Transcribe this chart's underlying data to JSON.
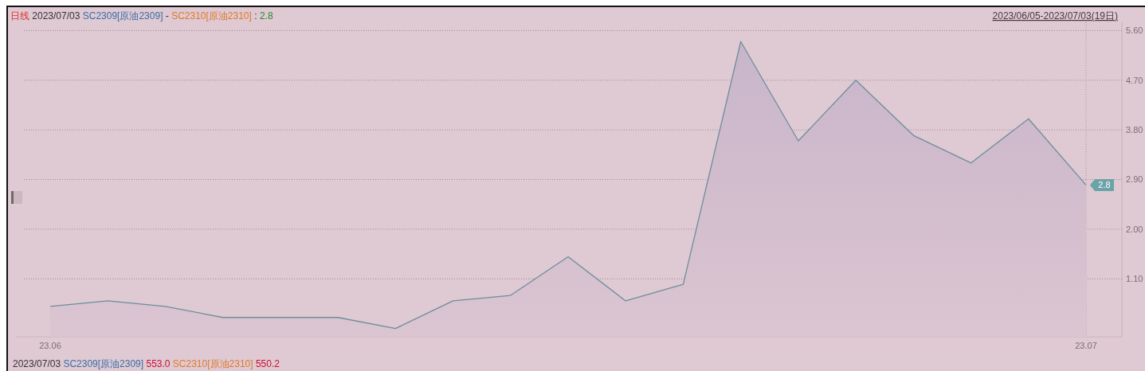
{
  "chart_data": {
    "type": "area",
    "title": "日线 2023/07/03 SC2309[原油2309] - SC2310[原油2310] : 2.8",
    "subtitle": "2023/06/05-2023/07/03(19日)",
    "categories": [
      "23.06",
      null,
      null,
      null,
      null,
      null,
      null,
      null,
      null,
      null,
      null,
      null,
      null,
      null,
      null,
      null,
      null,
      null,
      "23.07"
    ],
    "values": [
      0.6,
      0.7,
      0.6,
      0.4,
      0.4,
      0.4,
      0.2,
      0.7,
      0.8,
      1.5,
      0.7,
      1.0,
      5.4,
      3.6,
      4.7,
      3.7,
      3.2,
      4.0,
      2.8
    ],
    "color": "#6d8e99",
    "ylim": [
      0.05,
      5.75
    ],
    "yticks": [
      {
        "value": 1.1,
        "label": "1.10"
      },
      {
        "value": 2,
        "label": "2.00"
      },
      {
        "value": 2.9,
        "label": "2.90"
      },
      {
        "value": 3.8,
        "label": "3.80"
      },
      {
        "value": 4.7,
        "label": "4.70"
      },
      {
        "value": 5.6,
        "label": "5.60"
      }
    ],
    "grid": "y",
    "ref_lines": [
      {
        "axis": "x",
        "value": "23.07",
        "line_style": "dotted",
        "color": "#a8979f"
      }
    ],
    "annotations": [
      "2023/07/03 SC2309[原油2309] 553.0 SC2310[原油2310] 550.2",
      {
        "text": "2.8",
        "x": "23.07",
        "y": 2.8
      }
    ]
  }
}
